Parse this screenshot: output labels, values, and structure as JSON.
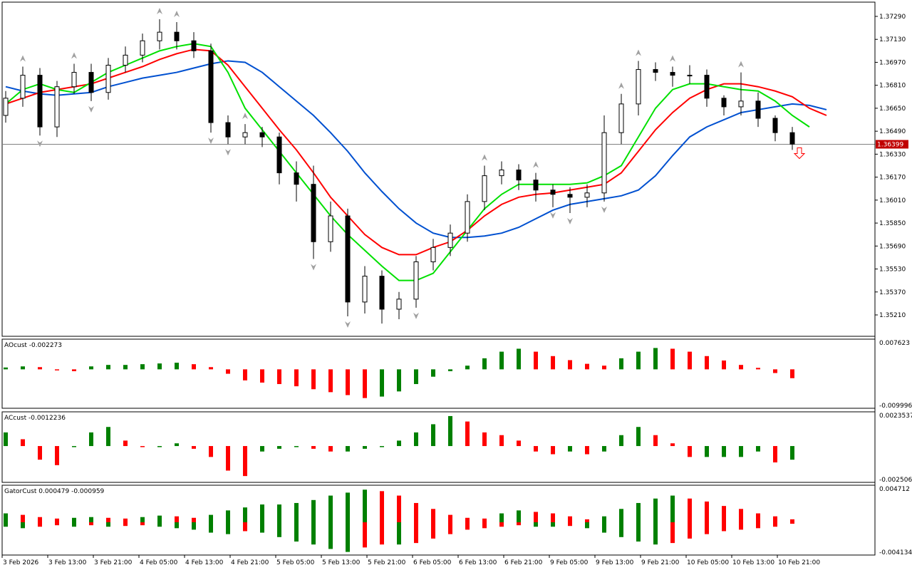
{
  "chart_data": {
    "type": "candlestick",
    "price_axis": {
      "ticks": [
        "1.37290",
        "1.37130",
        "1.36970",
        "1.36810",
        "1.36650",
        "1.36490",
        "1.36330",
        "1.36170",
        "1.36010",
        "1.35850",
        "1.35690",
        "1.35530",
        "1.35370",
        "1.35210"
      ],
      "range": [
        1.3511,
        1.3744
      ]
    },
    "bid": {
      "value": 1.36399,
      "label": "1.36399"
    },
    "time_labels": [
      "3 Feb 2026",
      "3 Feb 13:00",
      "3 Feb 21:00",
      "4 Feb 05:00",
      "4 Feb 13:00",
      "4 Feb 21:00",
      "5 Feb 05:00",
      "5 Feb 13:00",
      "5 Feb 21:00",
      "6 Feb 05:00",
      "6 Feb 13:00",
      "6 Feb 21:00",
      "9 Feb 05:00",
      "9 Feb 13:00",
      "9 Feb 21:00",
      "10 Feb 05:00",
      "10 Feb 13:00",
      "10 Feb 21:00"
    ],
    "open": [
      1.366,
      1.3672,
      1.3688,
      1.3652,
      1.368,
      1.369,
      1.3676,
      1.3695,
      1.3702,
      1.3712,
      1.3718,
      1.3712,
      1.3705,
      1.3655,
      1.3645,
      1.3648,
      1.3645,
      1.362,
      1.3612,
      1.3572,
      1.359,
      1.353,
      1.3548,
      1.3525,
      1.3532,
      1.3558,
      1.3568,
      1.3578,
      1.36,
      1.3618,
      1.3622,
      1.3615,
      1.3608,
      1.3605,
      1.3603,
      1.3606,
      1.3648,
      1.3668,
      1.3692,
      1.369,
      1.3688,
      1.3688,
      1.3672,
      1.3666,
      1.367,
      1.3658,
      1.3648
    ],
    "high": [
      1.3677,
      1.3694,
      1.3693,
      1.3684,
      1.3696,
      1.3696,
      1.37,
      1.3708,
      1.3717,
      1.3727,
      1.3725,
      1.3718,
      1.371,
      1.366,
      1.3654,
      1.3652,
      1.3648,
      1.3628,
      1.3625,
      1.36,
      1.3595,
      1.3555,
      1.3552,
      1.3537,
      1.3562,
      1.3574,
      1.3584,
      1.3605,
      1.3625,
      1.3628,
      1.3626,
      1.362,
      1.3612,
      1.361,
      1.3612,
      1.366,
      1.3675,
      1.3698,
      1.3697,
      1.3694,
      1.3695,
      1.3692,
      1.3674,
      1.369,
      1.3676,
      1.366,
      1.3652
    ],
    "low": [
      1.3655,
      1.3666,
      1.3646,
      1.3645,
      1.3675,
      1.367,
      1.3671,
      1.369,
      1.3697,
      1.3706,
      1.3706,
      1.37,
      1.3648,
      1.364,
      1.364,
      1.3638,
      1.3612,
      1.36,
      1.356,
      1.3565,
      1.352,
      1.3522,
      1.3515,
      1.3518,
      1.3526,
      1.3552,
      1.3562,
      1.3572,
      1.3594,
      1.3612,
      1.3608,
      1.36,
      1.3596,
      1.3592,
      1.3596,
      1.36,
      1.364,
      1.366,
      1.3684,
      1.368,
      1.3682,
      1.3666,
      1.366,
      1.366,
      1.3652,
      1.3642,
      1.3636
    ],
    "close": [
      1.3672,
      1.3688,
      1.3652,
      1.368,
      1.369,
      1.3676,
      1.3695,
      1.3702,
      1.3712,
      1.3718,
      1.3712,
      1.3705,
      1.3655,
      1.3645,
      1.3648,
      1.3645,
      1.362,
      1.3612,
      1.3572,
      1.359,
      1.353,
      1.3548,
      1.3525,
      1.3532,
      1.3558,
      1.3568,
      1.3578,
      1.36,
      1.3618,
      1.3622,
      1.3615,
      1.3608,
      1.3605,
      1.3603,
      1.3606,
      1.3648,
      1.3668,
      1.3692,
      1.369,
      1.3688,
      1.3688,
      1.3672,
      1.3666,
      1.367,
      1.3658,
      1.3648,
      1.364
    ],
    "lines": [
      {
        "color": "#0050d0",
        "values": [
          1.368,
          1.3677,
          1.3675,
          1.3674,
          1.3675,
          1.3676,
          1.368,
          1.3683,
          1.3686,
          1.3688,
          1.369,
          1.3693,
          1.3696,
          1.3698,
          1.3697,
          1.369,
          1.368,
          1.367,
          1.366,
          1.3648,
          1.3635,
          1.362,
          1.3607,
          1.3595,
          1.3585,
          1.3578,
          1.3575,
          1.3575,
          1.3576,
          1.3578,
          1.3582,
          1.3588,
          1.3594,
          1.3598,
          1.36,
          1.3602,
          1.3604,
          1.3608,
          1.3618,
          1.3632,
          1.3645,
          1.3652,
          1.3657,
          1.3662,
          1.3664,
          1.3666,
          1.3668,
          1.3667,
          1.3664
        ]
      },
      {
        "color": "#ff0000",
        "values": [
          1.3668,
          1.3672,
          1.3676,
          1.3678,
          1.368,
          1.3682,
          1.3686,
          1.369,
          1.3694,
          1.3699,
          1.3703,
          1.3706,
          1.3705,
          1.3695,
          1.368,
          1.3665,
          1.365,
          1.3636,
          1.362,
          1.3603,
          1.359,
          1.3577,
          1.3568,
          1.3563,
          1.3563,
          1.3568,
          1.3572,
          1.358,
          1.359,
          1.3598,
          1.3603,
          1.3605,
          1.3606,
          1.3608,
          1.361,
          1.3612,
          1.362,
          1.3635,
          1.365,
          1.3662,
          1.3672,
          1.3678,
          1.3682,
          1.3682,
          1.368,
          1.3677,
          1.3673,
          1.3665,
          1.366
        ]
      },
      {
        "color": "#00e000",
        "values": [
          1.3668,
          1.3678,
          1.3682,
          1.3678,
          1.3676,
          1.3683,
          1.369,
          1.3695,
          1.37,
          1.3705,
          1.3708,
          1.371,
          1.3708,
          1.369,
          1.3665,
          1.365,
          1.3635,
          1.362,
          1.3605,
          1.359,
          1.3577,
          1.3566,
          1.3555,
          1.3545,
          1.3545,
          1.355,
          1.3565,
          1.358,
          1.3595,
          1.3605,
          1.3612,
          1.3612,
          1.3612,
          1.3612,
          1.3613,
          1.3618,
          1.3625,
          1.3645,
          1.3665,
          1.3678,
          1.3682,
          1.3682,
          1.368,
          1.3678,
          1.3677,
          1.367,
          1.366,
          1.3652
        ]
      }
    ],
    "fractals_up": [
      1,
      4,
      9,
      10,
      14,
      28,
      31,
      36,
      37,
      39,
      43
    ],
    "fractals_down": [
      2,
      5,
      12,
      13,
      18,
      20,
      24,
      32,
      33,
      35
    ],
    "sell_arrow_color": "#ff0000",
    "indicators": [
      {
        "label": "AOcust -0.002273",
        "range": [
          -0.009996,
          0.007623
        ],
        "top_label": "0.007623",
        "bottom_label": "-0.009996",
        "values": [
          0.0005,
          0.0008,
          0.0006,
          0.0,
          -0.0005,
          0.0008,
          0.0012,
          0.0012,
          0.0014,
          0.0016,
          0.0018,
          0.0014,
          0.0006,
          -0.0012,
          -0.003,
          -0.0036,
          -0.004,
          -0.0046,
          -0.0054,
          -0.0062,
          -0.007,
          -0.0078,
          -0.0074,
          -0.006,
          -0.004,
          -0.002,
          -0.0005,
          0.001,
          0.003,
          0.0048,
          0.0056,
          0.0048,
          0.0036,
          0.0025,
          0.0015,
          0.001,
          0.003,
          0.0048,
          0.0058,
          0.0056,
          0.0048,
          0.0036,
          0.0024,
          0.0012,
          0.0004,
          -0.001,
          -0.0024
        ]
      },
      {
        "label": "ACcust -0.0012236",
        "range": [
          -0.0025062,
          0.0023537
        ],
        "top_label": "0.0023537",
        "bottom_label": "-0.0025062",
        "values": [
          0.001,
          0.0005,
          -0.001,
          -0.0014,
          0.0,
          0.001,
          0.0014,
          0.0004,
          0.0,
          0.0,
          0.0002,
          -0.0002,
          -0.0008,
          -0.0018,
          -0.0022,
          -0.0004,
          -0.0002,
          0.0,
          -0.0002,
          -0.0004,
          -0.0004,
          -0.0002,
          0.0,
          0.0004,
          0.001,
          0.0016,
          0.0022,
          0.0018,
          0.001,
          0.0008,
          0.0004,
          -0.0004,
          -0.0006,
          -0.0004,
          -0.0006,
          -0.0004,
          0.0008,
          0.0014,
          0.0008,
          0.0002,
          -0.0008,
          -0.0008,
          -0.0008,
          -0.0008,
          -0.0004,
          -0.0012,
          -0.001
        ]
      },
      {
        "label": "GatorCust 0.000479 -0.000959",
        "range": [
          -0.004134,
          0.004712
        ],
        "top_label": "0.004712",
        "bottom_label": "-0.004134",
        "up": [
          0.0012,
          0.001,
          0.0007,
          0.0005,
          0.0006,
          0.0007,
          0.0006,
          0.0005,
          0.0007,
          0.0009,
          0.0008,
          0.0006,
          0.001,
          0.0016,
          0.002,
          0.0024,
          0.0024,
          0.0026,
          0.003,
          0.0036,
          0.004,
          0.0044,
          0.0042,
          0.0036,
          0.0026,
          0.0018,
          0.001,
          0.0006,
          0.0005,
          0.0012,
          0.0016,
          0.0014,
          0.0012,
          0.0008,
          0.0004,
          0.0008,
          0.0018,
          0.0026,
          0.0032,
          0.0036,
          0.0032,
          0.0028,
          0.0022,
          0.0018,
          0.0012,
          0.0008,
          0.0004
        ],
        "down": [
          -0.0006,
          -0.0008,
          -0.0006,
          -0.0004,
          -0.0006,
          -0.0004,
          -0.0006,
          -0.0005,
          -0.0004,
          -0.0006,
          -0.0008,
          -0.001,
          -0.0014,
          -0.0016,
          -0.0012,
          -0.0014,
          -0.002,
          -0.0026,
          -0.003,
          -0.0036,
          -0.004,
          -0.0034,
          -0.003,
          -0.003,
          -0.0028,
          -0.0022,
          -0.0016,
          -0.001,
          -0.0008,
          -0.0006,
          -0.0004,
          -0.0006,
          -0.0006,
          -0.0005,
          -0.0008,
          -0.0014,
          -0.002,
          -0.0026,
          -0.003,
          -0.0028,
          -0.0022,
          -0.0016,
          -0.0012,
          -0.001,
          -0.0008,
          -0.0006,
          -0.0002
        ]
      }
    ],
    "colors": {
      "up_bar": "#008000",
      "down_bar": "#ff0000",
      "bull_candle": "#ffffff",
      "bear_candle": "#000000"
    }
  }
}
